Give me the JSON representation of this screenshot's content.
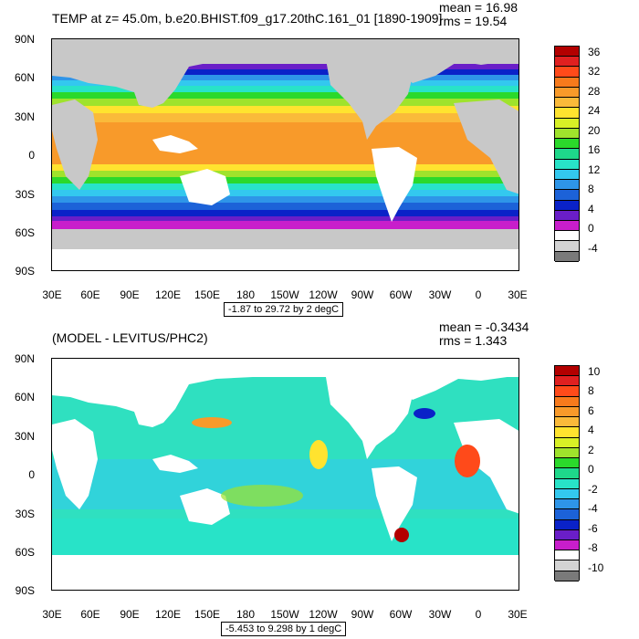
{
  "top_panel": {
    "title": "TEMP at z=  45.0m, b.e20.BHIST.f09_g17.20thC.161_01 [1890-1909]",
    "mean_text": "mean = 16.98",
    "rms_text": "rms = 19.54",
    "contour_info": "-1.87 to 29.72 by 2 degC",
    "colorbar": {
      "labels": [
        "36",
        "32",
        "28",
        "24",
        "20",
        "16",
        "12",
        "8",
        "4",
        "0",
        "-4"
      ],
      "colors": [
        "#b30000",
        "#e02020",
        "#ff4a1a",
        "#f77a1c",
        "#f89a2a",
        "#faba3a",
        "#ffe32f",
        "#d8f026",
        "#9fe32c",
        "#2bd92b",
        "#1ed88a",
        "#28e3c8",
        "#33c8ef",
        "#2e95e8",
        "#1c62d8",
        "#0a22c8",
        "#6a1ec8",
        "#c81ecb",
        "#ffffff",
        "#d3d3d3",
        "#7a7a7a"
      ]
    }
  },
  "bottom_panel": {
    "title": "(MODEL - LEVITUS/PHC2)",
    "mean_text": "mean = -0.3434",
    "rms_text": "rms = 1.343",
    "contour_info": "-5.453 to 9.298 by 1 degC",
    "colorbar": {
      "labels": [
        "10",
        "8",
        "6",
        "4",
        "2",
        "0",
        "-2",
        "-4",
        "-6",
        "-8",
        "-10"
      ],
      "colors": [
        "#b30000",
        "#e02020",
        "#ff4a1a",
        "#f77a1c",
        "#f89a2a",
        "#faba3a",
        "#ffe32f",
        "#d8f026",
        "#9fe32c",
        "#2bd92b",
        "#1ed88a",
        "#28e3c8",
        "#33c8ef",
        "#2e95e8",
        "#1c62d8",
        "#0a22c8",
        "#6a1ec8",
        "#c81ecb",
        "#ffffff",
        "#d3d3d3",
        "#7a7a7a"
      ]
    }
  },
  "axes": {
    "lat_labels": [
      "90N",
      "60N",
      "30N",
      "0",
      "30S",
      "60S",
      "90S"
    ],
    "lon_labels": [
      "30E",
      "60E",
      "90E",
      "120E",
      "150E",
      "180",
      "150W",
      "120W",
      "90W",
      "60W",
      "30W",
      "0",
      "30E"
    ]
  },
  "colors": {
    "land": "#c8c8c8",
    "bottom_ocean": "#2fe0c0"
  }
}
